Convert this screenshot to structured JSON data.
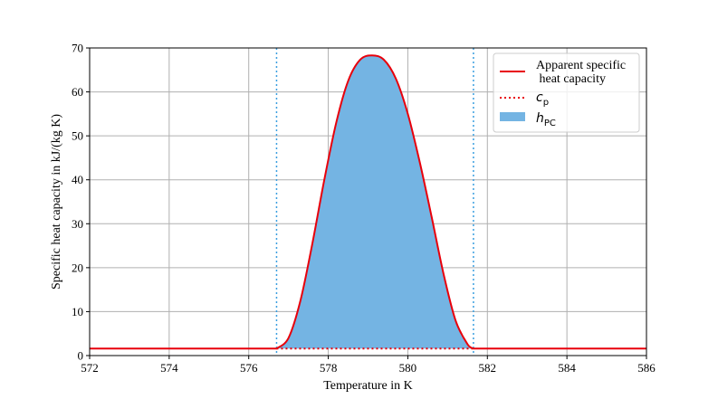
{
  "chart_data": {
    "type": "area",
    "xlabel": "Temperature in K",
    "ylabel": "Specific heat capacity in kJ/(kg K)",
    "xlim": [
      572,
      586
    ],
    "ylim": [
      0,
      70
    ],
    "xticks": [
      572,
      574,
      576,
      578,
      580,
      582,
      584,
      586
    ],
    "yticks": [
      0,
      10,
      20,
      30,
      40,
      50,
      60,
      70
    ],
    "grid": true,
    "legend_position": "top-right",
    "baseline_cp": 1.6,
    "phase_change_start": 576.7,
    "phase_change_end": 581.65,
    "peak": {
      "x": 579.1,
      "y": 68.3
    },
    "series": [
      {
        "name": "Apparent specific\n heat capacity",
        "color": "#e8000b",
        "style": "solid",
        "x": [
          572,
          576.7,
          577.0,
          577.3,
          577.6,
          577.9,
          578.2,
          578.5,
          578.8,
          579.1,
          579.4,
          579.7,
          580.0,
          580.3,
          580.6,
          580.9,
          581.2,
          581.5,
          581.65,
          586
        ],
        "y": [
          1.6,
          1.6,
          4.0,
          12.5,
          25.5,
          40.0,
          53.0,
          62.5,
          67.3,
          68.3,
          67.3,
          63.0,
          55.0,
          44.0,
          31.5,
          18.5,
          8.0,
          2.6,
          1.6,
          1.6
        ]
      },
      {
        "name": "c_p",
        "color": "#e8000b",
        "style": "dotted",
        "x": [
          576.7,
          581.65
        ],
        "y": [
          1.6,
          1.6
        ]
      }
    ],
    "fill": {
      "name": "h_PC",
      "color": "#74b4e3",
      "between": "apparent specific heat capacity and c_p"
    },
    "vlines": [
      {
        "x": 576.7,
        "color": "#3a9ee0",
        "style": "dotted"
      },
      {
        "x": 581.65,
        "color": "#3a9ee0",
        "style": "dotted"
      }
    ],
    "legend": [
      {
        "label_line1": "Apparent specific",
        "label_line2": " heat capacity",
        "style": "solid",
        "color": "#e8000b"
      },
      {
        "label_base": "c",
        "label_sub": "p",
        "style": "dotted",
        "color": "#e8000b"
      },
      {
        "label_base": "h",
        "label_sub": "PC",
        "style": "patch",
        "color": "#74b4e3"
      }
    ]
  }
}
